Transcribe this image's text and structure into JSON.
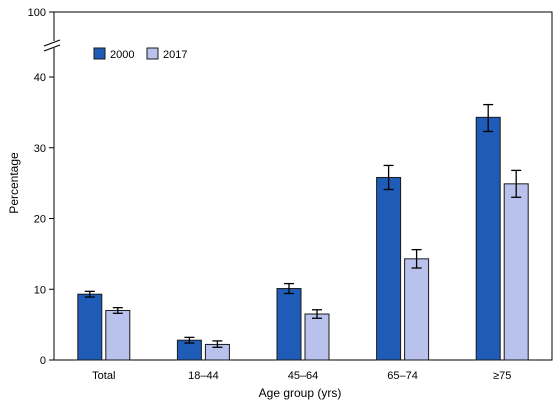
{
  "chart_data": {
    "type": "bar",
    "title": "",
    "xlabel": "Age group (yrs)",
    "ylabel": "Percentage",
    "ylim": [
      0,
      100
    ],
    "axis_break": true,
    "yticks": [
      "0",
      "10",
      "20",
      "30",
      "40",
      "100"
    ],
    "categories": [
      "Total",
      "18–44",
      "45–64",
      "65–74",
      "≥75"
    ],
    "series": [
      {
        "name": "2000",
        "color": "#1f5cb8",
        "values": [
          9.3,
          2.8,
          10.1,
          25.8,
          34.3
        ],
        "error_low": [
          8.9,
          2.4,
          9.4,
          24.1,
          32.3
        ],
        "error_high": [
          9.7,
          3.2,
          10.8,
          27.5,
          36.1
        ]
      },
      {
        "name": "2017",
        "color": "#b8c2ec",
        "values": [
          7.0,
          2.2,
          6.5,
          14.3,
          24.9
        ],
        "error_low": [
          6.6,
          1.8,
          5.9,
          13.0,
          23.0
        ],
        "error_high": [
          7.4,
          2.7,
          7.1,
          15.6,
          26.8
        ]
      }
    ],
    "grid": false,
    "legend_position": "top-left"
  }
}
